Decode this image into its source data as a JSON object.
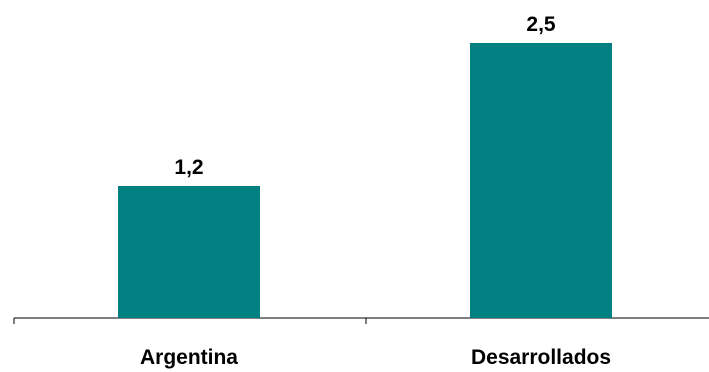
{
  "chart_data": {
    "type": "bar",
    "categories": [
      "Argentina",
      "Desarrollados"
    ],
    "values": [
      1.2,
      2.5
    ],
    "value_labels": [
      "1,2",
      "2,5"
    ],
    "title": "",
    "xlabel": "",
    "ylabel": "",
    "ylim": [
      0,
      2.5
    ],
    "grid": false,
    "legend": "none",
    "bar_color": "#008080",
    "axis_color": "#000000"
  }
}
